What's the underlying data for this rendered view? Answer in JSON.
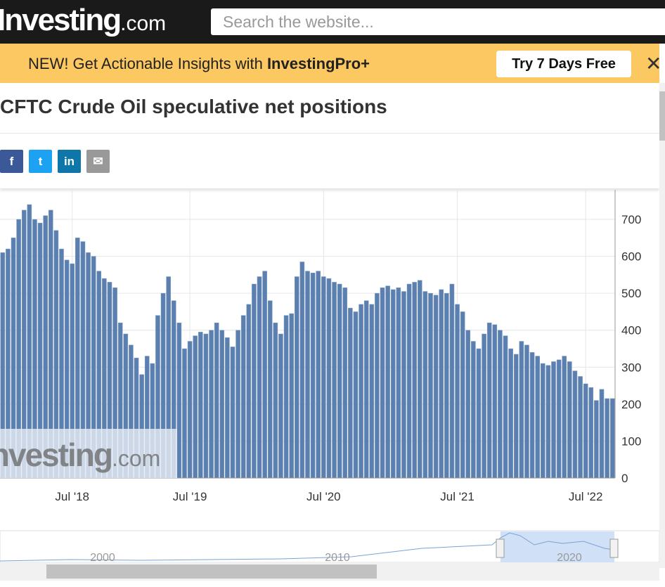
{
  "header": {
    "logo": "Investing",
    "logo_suffix": ".com",
    "search_placeholder": "Search the website..."
  },
  "banner": {
    "text": "NEW! Get Actionable Insights with ",
    "brand": "InvestingPro+",
    "button": "Try 7 Days Free"
  },
  "chart_data": {
    "type": "bar",
    "title": "CFTC Crude Oil speculative net positions",
    "color": "#5b80b0",
    "watermark": "Investing",
    "watermark_suffix": ".com",
    "categories": [
      null,
      null,
      null,
      null,
      null,
      null,
      null,
      null,
      null,
      null,
      null,
      null,
      null,
      "Jul '18",
      null,
      null,
      null,
      null,
      null,
      null,
      null,
      null,
      null,
      null,
      null,
      null,
      null,
      null,
      null,
      null,
      null,
      null,
      null,
      null,
      null,
      "Jul '19",
      null,
      null,
      null,
      null,
      null,
      null,
      null,
      null,
      null,
      null,
      null,
      null,
      null,
      null,
      null,
      null,
      null,
      null,
      null,
      null,
      null,
      null,
      null,
      null,
      "Jul '20",
      null,
      null,
      null,
      null,
      null,
      null,
      null,
      null,
      null,
      null,
      null,
      null,
      null,
      null,
      null,
      null,
      null,
      null,
      null,
      null,
      null,
      null,
      null,
      null,
      "Jul '21",
      null,
      null,
      null,
      null,
      null,
      null,
      null,
      null,
      null,
      null,
      null,
      null,
      null,
      null,
      null,
      null,
      null,
      null,
      null,
      null,
      null,
      null,
      null,
      "Jul '22",
      null,
      null,
      null,
      null,
      null
    ],
    "values": [
      610,
      620,
      650,
      700,
      725,
      740,
      700,
      690,
      710,
      725,
      670,
      620,
      590,
      580,
      650,
      640,
      610,
      600,
      560,
      540,
      530,
      515,
      420,
      390,
      360,
      325,
      280,
      330,
      310,
      440,
      500,
      545,
      480,
      420,
      350,
      370,
      385,
      395,
      390,
      400,
      420,
      400,
      380,
      355,
      400,
      440,
      470,
      525,
      545,
      560,
      480,
      420,
      390,
      440,
      445,
      545,
      585,
      560,
      555,
      560,
      545,
      540,
      530,
      525,
      515,
      460,
      450,
      470,
      480,
      470,
      500,
      515,
      520,
      510,
      515,
      505,
      525,
      530,
      535,
      505,
      500,
      495,
      510,
      500,
      525,
      470,
      450,
      400,
      370,
      350,
      390,
      420,
      415,
      400,
      385,
      350,
      335,
      370,
      360,
      340,
      330,
      310,
      305,
      315,
      320,
      330,
      315,
      290,
      275,
      255,
      245,
      210,
      240,
      215,
      215
    ],
    "ylim": [
      0,
      780
    ],
    "yticks": [
      0,
      100,
      200,
      300,
      400,
      500,
      600,
      700
    ],
    "grid": true,
    "navigator": {
      "labels": [
        "2000",
        "2010",
        "2020"
      ]
    }
  }
}
